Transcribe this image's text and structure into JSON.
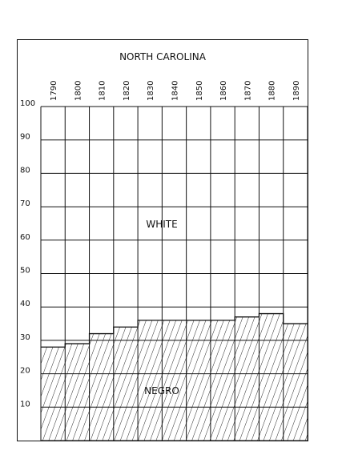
{
  "chart_data": {
    "type": "area",
    "title": "NORTH CAROLINA",
    "x": [
      "1790",
      "1800",
      "1810",
      "1820",
      "1830",
      "1840",
      "1850",
      "1860",
      "1870",
      "1880",
      "1890"
    ],
    "y_ticks": [
      "100",
      "90",
      "80",
      "70",
      "60",
      "50",
      "40",
      "30",
      "20",
      "10"
    ],
    "ylim": [
      0,
      100
    ],
    "series": [
      {
        "name": "NEGRO",
        "values": [
          28,
          29,
          32,
          34,
          36,
          36,
          36,
          36,
          37,
          38,
          35
        ]
      },
      {
        "name": "WHITE",
        "values": [
          72,
          71,
          68,
          66,
          64,
          64,
          64,
          64,
          63,
          62,
          65
        ]
      }
    ],
    "stacked_percent": true,
    "grid": true,
    "fill_pattern_lower": "diagonal-hatch"
  }
}
